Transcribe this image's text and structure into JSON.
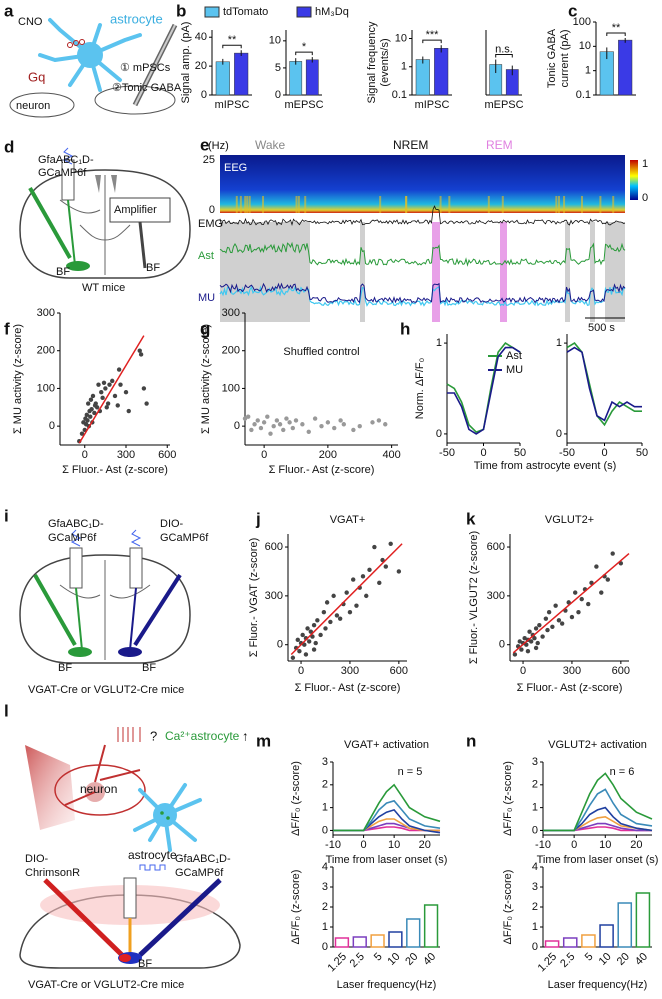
{
  "panel_labels": [
    "a",
    "b",
    "c",
    "d",
    "e",
    "f",
    "g",
    "h",
    "i",
    "j",
    "k",
    "l",
    "m",
    "n"
  ],
  "diagram_a": {
    "drug": "CNO",
    "cell": "astrocyte",
    "receptor": "Gq",
    "recording_1": "① mPSCs",
    "recording_2": "②Tonic GABA",
    "neuron": "neuron"
  },
  "diagram_d": {
    "sensor": [
      "GfaABC₁D-",
      "GCaMP6f"
    ],
    "amplifier": "Amplifier",
    "region_1": "BF",
    "region_2": "BF",
    "mice": "WT mice"
  },
  "panel_e": {
    "freq_unit": "(Hz)",
    "freq_max": 25,
    "freq_min": 0,
    "states": [
      "Wake",
      "NREM",
      "REM"
    ],
    "eeg": "EEG",
    "emg": "EMG",
    "ast": "Ast",
    "mu": "MU",
    "scale": "500 s",
    "colorbar_max": 1,
    "colorbar_min": 0
  },
  "diagram_i": {
    "sensor_1": [
      "GfaABC₁D-",
      "GCaMP6f"
    ],
    "sensor_2": [
      "DIO-",
      "GCaMP6f"
    ],
    "region_1": "BF",
    "region_2": "BF",
    "mice": "VGAT-Cre or VGLUT2-Cre mice"
  },
  "diagram_l": {
    "question": "?",
    "target": "Ca²⁺astrocyte",
    "arrow": "↑",
    "neuron": "neuron",
    "astrocyte": "astrocyte",
    "opsin": [
      "DIO-",
      "ChrimsonR"
    ],
    "sensor": [
      "GfaABC₁D-",
      "GCaMP6f"
    ],
    "region": "BF",
    "mice": "VGAT-Cre or VGLUT2-Cre mice"
  },
  "chart_data": [
    {
      "type": "bar",
      "ylabel": "Signal amp. (pA)",
      "categories": [
        "mIPSC"
      ],
      "series": [
        {
          "name": "tdTomato",
          "color": "#5bc3ef",
          "values": [
            23
          ],
          "errors": [
            2
          ]
        },
        {
          "name": "hM₃Dq",
          "color": "#3a3ae6",
          "values": [
            29
          ],
          "errors": [
            2
          ]
        }
      ],
      "ylim": [
        0,
        45
      ],
      "yticks": [
        0,
        20,
        40
      ],
      "annotation": "**"
    },
    {
      "type": "bar",
      "categories": [
        "mEPSC"
      ],
      "series": [
        {
          "color": "#5bc3ef",
          "values": [
            6.2
          ],
          "errors": [
            0.6
          ]
        },
        {
          "color": "#3a3ae6",
          "values": [
            6.5
          ],
          "errors": [
            0.5
          ]
        }
      ],
      "ylim": [
        0,
        12
      ],
      "yticks": [
        0,
        5,
        10
      ],
      "annotation": "*"
    },
    {
      "type": "bar",
      "ylog": true,
      "ylabel": [
        "Signal frequency",
        "(events/s)"
      ],
      "categories": [
        "mIPSC"
      ],
      "series": [
        {
          "color": "#5bc3ef",
          "values": [
            1.8
          ],
          "errors": [
            0.5
          ]
        },
        {
          "color": "#3a3ae6",
          "values": [
            4.5
          ],
          "errors": [
            1.3
          ]
        }
      ],
      "ylim": [
        0.1,
        20
      ],
      "yticks": [
        0.1,
        1,
        10
      ],
      "annotation": "***"
    },
    {
      "type": "bar",
      "ylog": true,
      "categories": [
        "mEPSC"
      ],
      "series": [
        {
          "color": "#5bc3ef",
          "values": [
            1.2
          ],
          "errors": [
            0.6
          ]
        },
        {
          "color": "#3a3ae6",
          "values": [
            0.8
          ],
          "errors": [
            0.3
          ]
        }
      ],
      "ylim": [
        0.1,
        20
      ],
      "annotation": "n.s."
    },
    {
      "type": "bar",
      "ylog": true,
      "ylabel": [
        "Tonic GABA",
        "current (pA)"
      ],
      "series": [
        {
          "color": "#5bc3ef",
          "values": [
            6
          ],
          "errors": [
            3
          ]
        },
        {
          "color": "#3a3ae6",
          "values": [
            18
          ],
          "errors": [
            4
          ]
        }
      ],
      "ylim": [
        0.1,
        100
      ],
      "yticks": [
        0.1,
        1,
        10,
        100
      ],
      "annotation": "**"
    },
    {
      "type": "scatter",
      "xlabel": "Σ Fluor.- Ast (z-score)",
      "ylabel": "Σ MU activity (z-score)",
      "color": "#444444",
      "x": [
        -40,
        -20,
        -10,
        0,
        5,
        10,
        15,
        20,
        25,
        30,
        35,
        40,
        45,
        50,
        55,
        60,
        70,
        75,
        80,
        90,
        100,
        110,
        120,
        130,
        140,
        150,
        160,
        170,
        180,
        200,
        220,
        240,
        250,
        260,
        300,
        320,
        400,
        410,
        430,
        450
      ],
      "values": [
        -40,
        -20,
        10,
        -10,
        20,
        5,
        30,
        15,
        60,
        0,
        40,
        25,
        70,
        45,
        10,
        80,
        35,
        55,
        60,
        50,
        110,
        40,
        90,
        75,
        115,
        100,
        50,
        60,
        110,
        120,
        80,
        55,
        150,
        110,
        90,
        40,
        200,
        190,
        100,
        60
      ],
      "xlim": [
        -180,
        620
      ],
      "ylim": [
        -50,
        300
      ],
      "xticks": [
        0,
        300,
        600
      ],
      "yticks": [
        0,
        100,
        200,
        300
      ],
      "fit": {
        "x": [
          -40,
          430
        ],
        "y": [
          -45,
          240
        ],
        "color": "#e02020"
      }
    },
    {
      "type": "scatter",
      "title": "Shuffled control",
      "xlabel": "Σ Fluor.- Ast (z-score)",
      "ylabel": "Σ MU activity (z-score)",
      "color": "#999999",
      "x": [
        -60,
        -40,
        -30,
        -20,
        -10,
        0,
        10,
        20,
        30,
        40,
        50,
        60,
        70,
        80,
        90,
        100,
        120,
        140,
        160,
        180,
        200,
        220,
        240,
        250,
        280,
        300,
        340,
        360,
        380,
        -50
      ],
      "values": [
        20,
        -10,
        5,
        15,
        -5,
        10,
        25,
        -20,
        0,
        15,
        5,
        -10,
        20,
        10,
        -5,
        15,
        5,
        -15,
        20,
        0,
        10,
        -5,
        15,
        5,
        -10,
        0,
        10,
        15,
        5,
        25
      ],
      "xlim": [
        -60,
        420
      ],
      "ylim": [
        -50,
        300
      ],
      "xticks": [
        0,
        200,
        400
      ],
      "yticks": [
        0,
        100,
        200,
        300
      ]
    },
    {
      "type": "line",
      "ylabel": "Norm. ΔF/F₀",
      "xlabel": "Time from astrocyte event (s)",
      "x": [
        -50,
        -40,
        -30,
        -20,
        -10,
        0,
        10,
        20,
        30,
        40,
        50
      ],
      "series": [
        {
          "name": "Ast",
          "color": "#2a9a3a",
          "values": [
            0.55,
            0.5,
            0.35,
            0.1,
            0.02,
            0.05,
            0.5,
            0.9,
            1.0,
            0.95,
            0.9
          ]
        },
        {
          "name": "MU",
          "color": "#1a1a8a",
          "values": [
            0.45,
            0.45,
            0.3,
            0.05,
            0,
            0.05,
            0.45,
            0.85,
            0.95,
            0.95,
            0.9
          ]
        }
      ],
      "xlim": [
        -50,
        50
      ],
      "ylim": [
        -0.1,
        1.1
      ],
      "xticks": [
        -50,
        0,
        50
      ],
      "yticks": [
        0,
        1
      ]
    },
    {
      "type": "line",
      "x": [
        -50,
        -40,
        -30,
        -20,
        -10,
        0,
        10,
        20,
        30,
        40,
        50
      ],
      "series": [
        {
          "color": "#2a9a3a",
          "values": [
            0.95,
            1.0,
            0.9,
            0.55,
            0.2,
            0.1,
            0.25,
            0.35,
            0.3,
            0.25,
            0.25
          ]
        },
        {
          "color": "#1a1a8a",
          "values": [
            0.9,
            0.95,
            0.9,
            0.5,
            0.2,
            0.15,
            0.35,
            0.3,
            0.35,
            0.3,
            0.3
          ]
        }
      ],
      "xlim": [
        -50,
        50
      ],
      "ylim": [
        -0.1,
        1.1
      ],
      "xticks": [
        -50,
        0,
        50
      ],
      "yticks": [
        0,
        1
      ]
    },
    {
      "type": "scatter",
      "title": "VGAT+",
      "xlabel": "Σ Fluor.- Ast (z-score)",
      "ylabel": "Σ Fluor.- VGAT (z-score)",
      "color": "#444444",
      "x": [
        -50,
        -30,
        -20,
        -10,
        0,
        10,
        20,
        30,
        40,
        50,
        60,
        70,
        80,
        90,
        100,
        120,
        140,
        150,
        160,
        180,
        200,
        220,
        240,
        260,
        280,
        300,
        320,
        340,
        360,
        380,
        400,
        420,
        450,
        480,
        500,
        520,
        550,
        600,
        30,
        80
      ],
      "values": [
        -80,
        -20,
        30,
        -40,
        10,
        60,
        0,
        40,
        100,
        20,
        80,
        50,
        120,
        10,
        150,
        60,
        200,
        100,
        260,
        140,
        300,
        180,
        160,
        250,
        320,
        200,
        400,
        240,
        350,
        420,
        300,
        460,
        600,
        380,
        520,
        480,
        620,
        450,
        -60,
        -30
      ],
      "xlim": [
        -80,
        650
      ],
      "ylim": [
        -100,
        680
      ],
      "xticks": [
        0,
        300,
        600
      ],
      "yticks": [
        0,
        300,
        600
      ],
      "fit": {
        "x": [
          -60,
          620
        ],
        "y": [
          -60,
          620
        ],
        "color": "#e02020"
      }
    },
    {
      "type": "scatter",
      "title": "VGLUT2+",
      "xlabel": "Σ Fluor.- Ast (z-score)",
      "ylabel": "Σ Fluor.- VLGUT2 (z-score)",
      "color": "#444444",
      "x": [
        -50,
        -30,
        -20,
        -10,
        0,
        10,
        20,
        30,
        40,
        50,
        60,
        70,
        80,
        90,
        100,
        120,
        140,
        150,
        160,
        180,
        200,
        220,
        240,
        260,
        280,
        300,
        320,
        340,
        360,
        380,
        400,
        420,
        450,
        480,
        500,
        520,
        550,
        600,
        30,
        80
      ],
      "values": [
        -60,
        -10,
        20,
        -30,
        10,
        40,
        0,
        30,
        80,
        20,
        60,
        40,
        100,
        10,
        120,
        50,
        160,
        90,
        200,
        110,
        240,
        150,
        130,
        210,
        260,
        170,
        320,
        200,
        280,
        340,
        250,
        380,
        480,
        320,
        420,
        400,
        560,
        500,
        -40,
        -20
      ],
      "xlim": [
        -80,
        650
      ],
      "ylim": [
        -100,
        680
      ],
      "xticks": [
        0,
        300,
        600
      ],
      "yticks": [
        0,
        300,
        600
      ],
      "fit": {
        "x": [
          -60,
          650
        ],
        "y": [
          -50,
          560
        ],
        "color": "#e02020"
      }
    },
    {
      "type": "line",
      "title": "VGAT+ activation",
      "annotation": "n = 5",
      "ylabel": "ΔF/F₀ (z-score)",
      "xlabel": "Time from laser onset (s)",
      "x": [
        -10,
        -5,
        0,
        2.5,
        5,
        7.5,
        10,
        12.5,
        15,
        20,
        25
      ],
      "series": [
        {
          "color": "#e0309a",
          "values": [
            0,
            0,
            0,
            0.05,
            0.1,
            0.15,
            0.15,
            0.1,
            0,
            0,
            0
          ]
        },
        {
          "color": "#7b3fbf",
          "values": [
            0,
            0,
            0,
            0.1,
            0.2,
            0.3,
            0.3,
            0.2,
            0.1,
            0,
            0
          ]
        },
        {
          "color": "#f0a040",
          "values": [
            0,
            0,
            0,
            0.2,
            0.4,
            0.5,
            0.5,
            0.3,
            0.1,
            0,
            0
          ]
        },
        {
          "color": "#2040a0",
          "values": [
            0,
            0,
            0,
            0.3,
            0.6,
            0.8,
            0.9,
            0.5,
            0.2,
            0,
            -0.1
          ]
        },
        {
          "color": "#3a8ab8",
          "values": [
            0,
            0,
            0,
            0.4,
            0.9,
            1.2,
            1.3,
            0.9,
            0.5,
            0.2,
            0.1
          ]
        },
        {
          "color": "#2a9a3a",
          "values": [
            0,
            0,
            0,
            0.6,
            1.2,
            1.7,
            2.0,
            1.5,
            1.0,
            0.6,
            0.4
          ]
        }
      ],
      "xlim": [
        -10,
        25
      ],
      "ylim": [
        -0.2,
        3
      ],
      "xticks": [
        -10,
        0,
        10,
        20
      ],
      "yticks": [
        0,
        1,
        2,
        3
      ]
    },
    {
      "type": "bar",
      "ylabel": "ΔF/F₀ (z-score)",
      "xlabel": "Laser frequency(Hz)",
      "categories": [
        "1.25",
        "2.5",
        "5",
        "10",
        "20",
        "40"
      ],
      "values": [
        0.45,
        0.5,
        0.6,
        0.75,
        1.4,
        2.1
      ],
      "colors": [
        "#e0309a",
        "#7b3fbf",
        "#f0a040",
        "#2040a0",
        "#3a8ab8",
        "#2a9a3a"
      ],
      "ylim": [
        0,
        4
      ],
      "yticks": [
        0,
        1,
        2,
        3,
        4
      ]
    },
    {
      "type": "line",
      "title": "VGLUT2+ activation",
      "annotation": "n = 6",
      "ylabel": "ΔF/F₀ (z-score)",
      "xlabel": "Time from laser onset (s)",
      "x": [
        -10,
        -5,
        0,
        2.5,
        5,
        7.5,
        10,
        12.5,
        15,
        20,
        25
      ],
      "series": [
        {
          "color": "#e0309a",
          "values": [
            0,
            0,
            0,
            0.05,
            0.1,
            0.15,
            0.15,
            0.1,
            0,
            0,
            0
          ]
        },
        {
          "color": "#7b3fbf",
          "values": [
            0,
            0,
            0,
            0.1,
            0.2,
            0.3,
            0.3,
            0.2,
            0.1,
            0,
            0
          ]
        },
        {
          "color": "#f0a040",
          "values": [
            0,
            0,
            0,
            0.2,
            0.4,
            0.55,
            0.6,
            0.4,
            0.2,
            0.1,
            0
          ]
        },
        {
          "color": "#2040a0",
          "values": [
            0,
            0,
            0,
            0.3,
            0.7,
            0.9,
            1.0,
            0.6,
            0.3,
            0.1,
            0
          ]
        },
        {
          "color": "#3a8ab8",
          "values": [
            0,
            0,
            0,
            0.5,
            1.1,
            1.6,
            1.8,
            1.2,
            0.7,
            0.3,
            0.2
          ]
        },
        {
          "color": "#2a9a3a",
          "values": [
            0,
            0,
            0,
            0.8,
            1.6,
            2.2,
            2.5,
            2.0,
            1.4,
            0.8,
            0.5
          ]
        }
      ],
      "xlim": [
        -10,
        25
      ],
      "ylim": [
        -0.2,
        3
      ],
      "xticks": [
        -10,
        0,
        10,
        20
      ],
      "yticks": [
        0,
        1,
        2,
        3
      ]
    },
    {
      "type": "bar",
      "ylabel": "ΔF/F₀ (z-score)",
      "xlabel": "Laser frequency(Hz)",
      "categories": [
        "1.25",
        "2.5",
        "5",
        "10",
        "20",
        "40"
      ],
      "values": [
        0.3,
        0.45,
        0.6,
        1.1,
        2.2,
        2.7
      ],
      "colors": [
        "#e0309a",
        "#7b3fbf",
        "#f0a040",
        "#2040a0",
        "#3a8ab8",
        "#2a9a3a"
      ],
      "ylim": [
        0,
        4
      ],
      "yticks": [
        0,
        1,
        2,
        3,
        4
      ]
    }
  ]
}
